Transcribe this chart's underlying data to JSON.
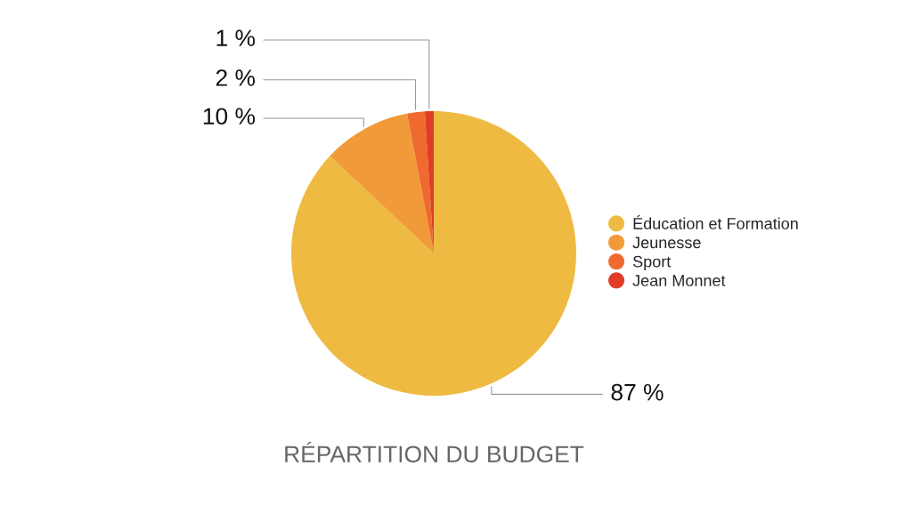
{
  "chart_data": {
    "type": "pie",
    "title": "RÉPARTITION DU BUDGET",
    "categories": [
      "Éducation et Formation",
      "Jeunesse",
      "Sport",
      "Jean Monnet"
    ],
    "values": [
      87,
      10,
      2,
      1
    ],
    "value_labels": [
      "87 %",
      "10 %",
      "2 %",
      "1 %"
    ],
    "colors": [
      "#eeba41",
      "#f09a3a",
      "#ee6a2e",
      "#e03c27"
    ],
    "legend": "right"
  }
}
